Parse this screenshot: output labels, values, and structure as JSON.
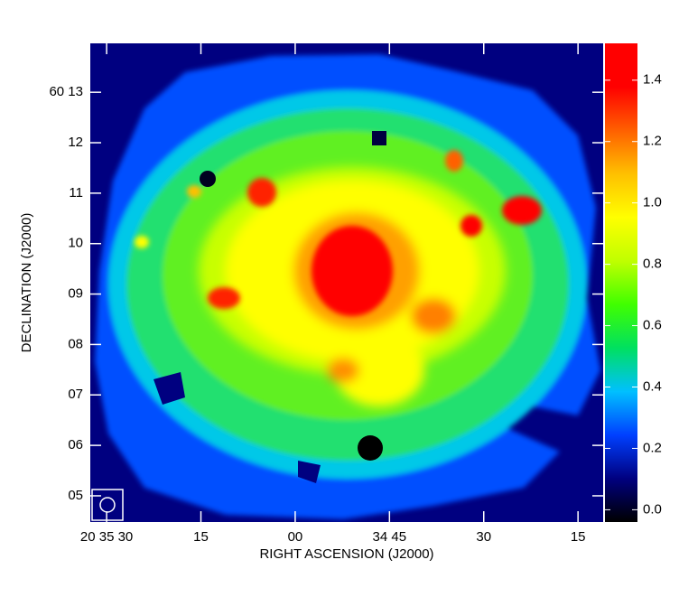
{
  "chart_data": {
    "type": "image",
    "xlabel": "RIGHT ASCENSION (J2000)",
    "ylabel": "DECLINATION (J2000)",
    "xlim": [
      2132.6,
      2051.0
    ],
    "xticks": [
      {
        "value": 2130,
        "label": "20 35 30"
      },
      {
        "value": 2115,
        "label": "15"
      },
      {
        "value": 2100,
        "label": "00"
      },
      {
        "value": 2085,
        "label": "34 45"
      },
      {
        "value": 2070,
        "label": "30"
      },
      {
        "value": 2055,
        "label": "15"
      }
    ],
    "ylim": [
      4.48,
      13.97
    ],
    "yticks": [
      {
        "value": 5,
        "label": "05"
      },
      {
        "value": 6,
        "label": "06"
      },
      {
        "value": 7,
        "label": "07"
      },
      {
        "value": 8,
        "label": "08"
      },
      {
        "value": 9,
        "label": "09"
      },
      {
        "value": 10,
        "label": "10"
      },
      {
        "value": 11,
        "label": "11"
      },
      {
        "value": 12,
        "label": "12"
      },
      {
        "value": 13,
        "label": "60 13"
      }
    ],
    "clim": [
      -0.04,
      1.52
    ],
    "cticks": [
      {
        "value": 0,
        "label": "0.0"
      },
      {
        "value": 0.2,
        "label": "0.2"
      },
      {
        "value": 0.4,
        "label": "0.4"
      },
      {
        "value": 0.6,
        "label": "0.6"
      },
      {
        "value": 0.8,
        "label": "0.8"
      },
      {
        "value": 1.0,
        "label": "1.0"
      },
      {
        "value": 1.2,
        "label": "1.2"
      },
      {
        "value": 1.4,
        "label": "1.4"
      }
    ],
    "colormap": [
      "#000000",
      "#000080",
      "#0040ff",
      "#00c0ff",
      "#00e060",
      "#40ff00",
      "#c0ff00",
      "#ffff00",
      "#ffc000",
      "#ff6000",
      "#ff0000",
      "#ff0000"
    ]
  }
}
